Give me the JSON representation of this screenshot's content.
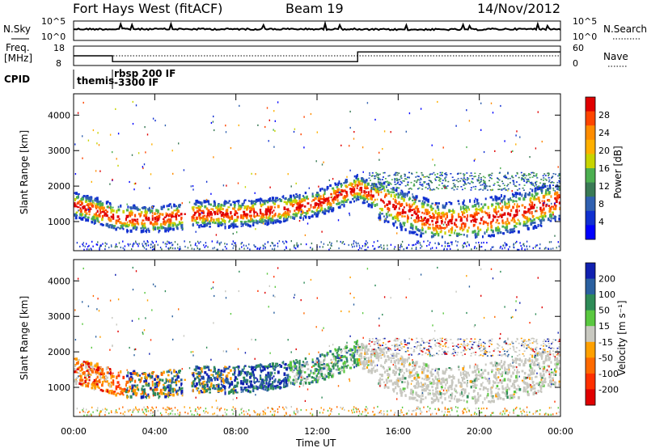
{
  "header": {
    "station": "Fort Hays West (fitACF)",
    "beam": "Beam 19",
    "date": "14/Nov/2012"
  },
  "noise_panel": {
    "left_label": "N.Sky",
    "right_label": "N.Search",
    "left_ticks": [
      "10^5",
      "10^0"
    ],
    "right_ticks": [
      "10^5",
      "10^0"
    ]
  },
  "freq_panel": {
    "left_label_1": "Freq.",
    "left_label_2": "[MHz]",
    "right_label": "Nave",
    "left_ticks": [
      "18",
      "8"
    ],
    "right_ticks": [
      "60",
      "0"
    ]
  },
  "cpid_panel": {
    "label": "CPID",
    "segments": [
      "themis",
      "rbsp 200 IF",
      "-3300 IF"
    ]
  },
  "power_panel": {
    "ylabel": "Slant Range [km]",
    "yticks": [
      "4000",
      "3000",
      "2000",
      "1000"
    ],
    "cbar_label": "Power [dB]",
    "cbar_ticks": [
      "28",
      "24",
      "20",
      "16",
      "12",
      "8",
      "4"
    ],
    "cbar_colors": [
      "#e00000",
      "#ff4500",
      "#ff8c00",
      "#ffb000",
      "#c8d400",
      "#4caf50",
      "#3a7a55",
      "#3060b0",
      "#1030d0",
      "#0000ff"
    ]
  },
  "velocity_panel": {
    "ylabel": "Slant Range [km]",
    "yticks": [
      "4000",
      "3000",
      "2000",
      "1000"
    ],
    "cbar_label": "Velocity [m s⁻¹]",
    "cbar_ticks": [
      "200",
      "100",
      "50",
      "15",
      "-15",
      "-50",
      "-100",
      "-200"
    ],
    "cbar_colors": [
      "#1020b0",
      "#2a60a0",
      "#2e8b57",
      "#5ac840",
      "#c8c8c0",
      "#ffa000",
      "#ff6a00",
      "#ff3000",
      "#e00000"
    ]
  },
  "x_axis": {
    "xlabel": "Time UT",
    "ticks": [
      "00:00",
      "04:00",
      "08:00",
      "12:00",
      "16:00",
      "20:00",
      "00:00"
    ]
  },
  "chart_data": {
    "type": "heatmap",
    "title": "Fort Hays West (fitACF)",
    "xlabel": "Time UT",
    "ylabel": "Slant Range [km]",
    "x_range_hours": [
      0,
      24
    ],
    "y_range_km": [
      180,
      4600
    ],
    "frequency_mhz": [
      {
        "from": "00:00",
        "to": "01:55",
        "value": 13
      },
      {
        "from": "01:55",
        "to": "14:00",
        "value": 10
      },
      {
        "from": "14:00",
        "to": "24:00",
        "value": 15
      }
    ],
    "power_band_center_km": [
      {
        "t": 0.0,
        "km": 1500
      },
      {
        "t": 1.0,
        "km": 1350
      },
      {
        "t": 2.0,
        "km": 1150
      },
      {
        "t": 4.0,
        "km": 1100
      },
      {
        "t": 6.0,
        "km": 1250
      },
      {
        "t": 8.0,
        "km": 1250
      },
      {
        "t": 10.0,
        "km": 1350
      },
      {
        "t": 12.0,
        "km": 1550
      },
      {
        "t": 14.0,
        "km": 2000
      },
      {
        "t": 16.0,
        "km": 1400
      },
      {
        "t": 18.0,
        "km": 1000
      },
      {
        "t": 20.0,
        "km": 1100
      },
      {
        "t": 22.0,
        "km": 1300
      },
      {
        "t": 24.0,
        "km": 1650
      }
    ]
  }
}
